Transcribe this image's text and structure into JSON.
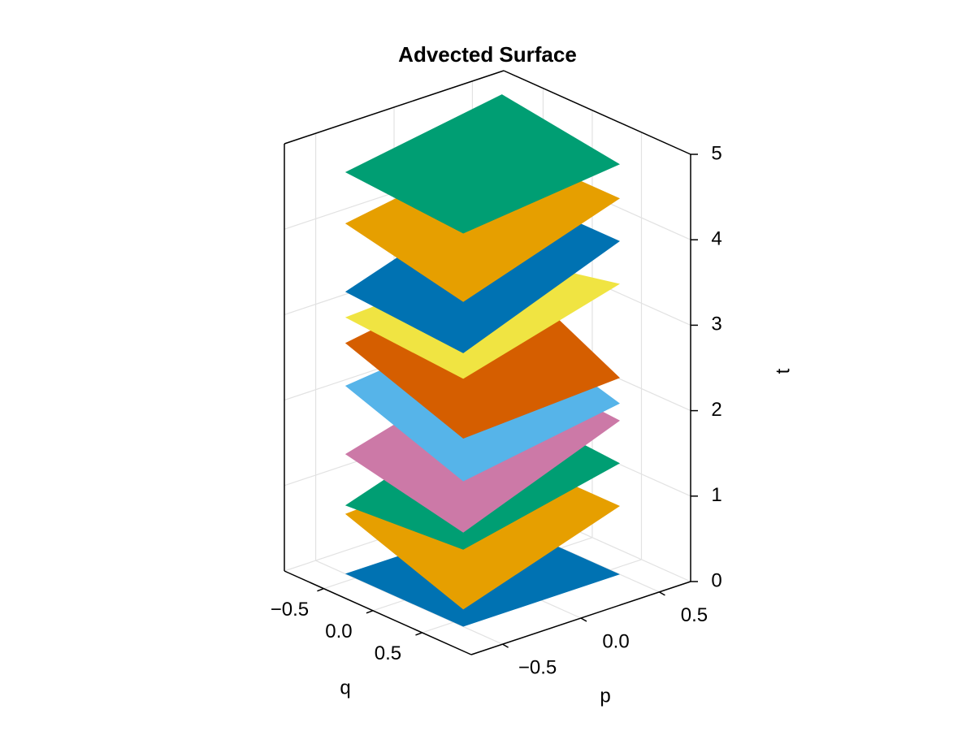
{
  "chart_data": {
    "type": "surface3d",
    "title": "Advected Surface",
    "qlabel": "q",
    "plabel": "p",
    "tlabel": "t",
    "qlim": [
      -0.9,
      1.0
    ],
    "qticks": [
      {
        "value": -0.5,
        "label": "−0.5"
      },
      {
        "value": 0,
        "label": "0.0"
      },
      0.5
    ],
    "plim": [
      -0.7,
      0.7
    ],
    "pticks": [
      {
        "value": -0.5,
        "label": "−0.5"
      },
      {
        "value": 0,
        "label": "0.0"
      },
      0.5
    ],
    "tlim": [
      0,
      5
    ],
    "tticks": [
      0,
      1,
      2,
      3,
      4,
      5
    ],
    "grid": true,
    "q": [
      -0.6,
      0.6,
      0.6,
      -0.6
    ],
    "p": [
      -0.5,
      -0.5,
      0.5,
      0.5
    ],
    "series": [
      {
        "color": "#0072b2",
        "values": [
          0.0,
          0.0,
          0.0,
          0.0
        ]
      },
      {
        "color": "#e69f00",
        "values": [
          0.7,
          0.2,
          0.8,
          0.8
        ]
      },
      {
        "color": "#009e73",
        "values": [
          0.8,
          0.9,
          1.3,
          1.4
        ]
      },
      {
        "color": "#cc79a7",
        "values": [
          1.4,
          1.1,
          1.8,
          1.9
        ]
      },
      {
        "color": "#56b4e9",
        "values": [
          2.2,
          1.7,
          2.0,
          2.4
        ]
      },
      {
        "color": "#d55e00",
        "values": [
          2.7,
          2.2,
          2.3,
          3.0
        ]
      },
      {
        "color": "#f0e442",
        "values": [
          3.0,
          2.9,
          3.4,
          3.1
        ]
      },
      {
        "color": "#0072b2",
        "values": [
          3.3,
          3.2,
          3.9,
          3.9
        ]
      },
      {
        "color": "#e69f00",
        "values": [
          4.1,
          3.8,
          4.4,
          4.4
        ]
      },
      {
        "color": "#009e73",
        "values": [
          4.7,
          4.6,
          4.8,
          5.0
        ]
      }
    ]
  }
}
